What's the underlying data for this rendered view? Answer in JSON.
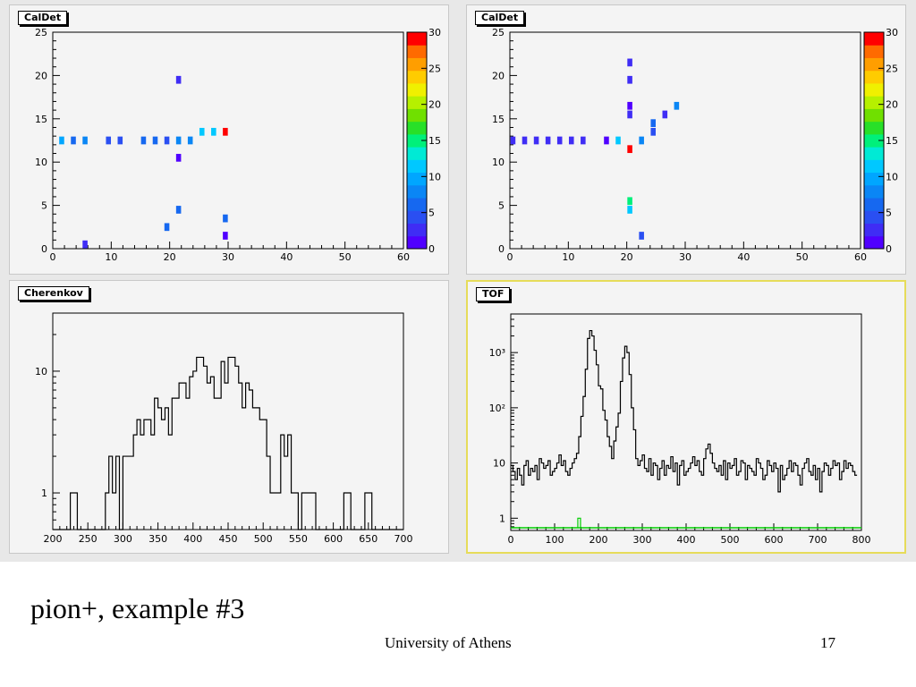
{
  "slide": {
    "caption": "pion+, example #3",
    "footer": "University of Athens",
    "page_number": "17"
  },
  "chart_data": [
    {
      "type": "heatmap",
      "title": "CalDet",
      "xlim": [
        0,
        60
      ],
      "ylim": [
        0,
        25
      ],
      "xticks": [
        0,
        10,
        20,
        30,
        40,
        50,
        60
      ],
      "yticks": [
        0,
        5,
        10,
        15,
        20,
        25
      ],
      "zlim": [
        0,
        30
      ],
      "zticks": [
        0,
        5,
        10,
        15,
        20,
        25,
        30
      ],
      "palette": [
        "#5000ff",
        "#3f2df5",
        "#2a4ff2",
        "#1668f0",
        "#0a86f5",
        "#00a6ff",
        "#00c8ff",
        "#00ead5",
        "#00f07a",
        "#28e028",
        "#70e000",
        "#b6f000",
        "#f0f000",
        "#ffcc00",
        "#ff9e00",
        "#ff6a00",
        "#ff0000"
      ],
      "points": [
        {
          "x": 1,
          "y": 12.5,
          "z": 9
        },
        {
          "x": 3,
          "y": 12.5,
          "z": 7
        },
        {
          "x": 5,
          "y": 12.5,
          "z": 8
        },
        {
          "x": 9,
          "y": 12.5,
          "z": 4
        },
        {
          "x": 11,
          "y": 12.5,
          "z": 4
        },
        {
          "x": 15,
          "y": 12.5,
          "z": 6
        },
        {
          "x": 17,
          "y": 12.5,
          "z": 6
        },
        {
          "x": 19,
          "y": 12.5,
          "z": 4
        },
        {
          "x": 21,
          "y": 12.5,
          "z": 8
        },
        {
          "x": 23,
          "y": 12.5,
          "z": 8
        },
        {
          "x": 25,
          "y": 13.5,
          "z": 12
        },
        {
          "x": 27,
          "y": 13.5,
          "z": 12
        },
        {
          "x": 29,
          "y": 13.5,
          "z": 30
        },
        {
          "x": 21,
          "y": 19.5,
          "z": 3
        },
        {
          "x": 21,
          "y": 10.5,
          "z": 1
        },
        {
          "x": 21,
          "y": 4.5,
          "z": 7
        },
        {
          "x": 19,
          "y": 2.5,
          "z": 7
        },
        {
          "x": 29,
          "y": 3.5,
          "z": 7
        },
        {
          "x": 29,
          "y": 1.5,
          "z": 1
        },
        {
          "x": 5,
          "y": 0.5,
          "z": 3
        }
      ]
    },
    {
      "type": "heatmap",
      "title": "CalDet",
      "xlim": [
        0,
        60
      ],
      "ylim": [
        0,
        25
      ],
      "xticks": [
        0,
        10,
        20,
        30,
        40,
        50,
        60
      ],
      "yticks": [
        0,
        5,
        10,
        15,
        20,
        25
      ],
      "zlim": [
        0,
        30
      ],
      "zticks": [
        0,
        5,
        10,
        15,
        20,
        25,
        30
      ],
      "points": [
        {
          "x": 0.5,
          "y": 12.5,
          "z": 2
        },
        {
          "x": 2.5,
          "y": 12.5,
          "z": 2
        },
        {
          "x": 4.5,
          "y": 12.5,
          "z": 2
        },
        {
          "x": 6.5,
          "y": 12.5,
          "z": 2
        },
        {
          "x": 8.5,
          "y": 12.5,
          "z": 2
        },
        {
          "x": 10.5,
          "y": 12.5,
          "z": 2
        },
        {
          "x": 12.5,
          "y": 12.5,
          "z": 2
        },
        {
          "x": 16.5,
          "y": 12.5,
          "z": 1
        },
        {
          "x": 18.5,
          "y": 12.5,
          "z": 11
        },
        {
          "x": 20.5,
          "y": 11.5,
          "z": 30
        },
        {
          "x": 22.5,
          "y": 12.5,
          "z": 8
        },
        {
          "x": 20.5,
          "y": 21.5,
          "z": 2
        },
        {
          "x": 20.5,
          "y": 19.5,
          "z": 2
        },
        {
          "x": 20.5,
          "y": 16.5,
          "z": 1
        },
        {
          "x": 20.5,
          "y": 15.5,
          "z": 2
        },
        {
          "x": 24.5,
          "y": 13.5,
          "z": 4
        },
        {
          "x": 24.5,
          "y": 14.5,
          "z": 6
        },
        {
          "x": 26.5,
          "y": 15.5,
          "z": 2
        },
        {
          "x": 28.5,
          "y": 16.5,
          "z": 8
        },
        {
          "x": 20.5,
          "y": 5.5,
          "z": 15
        },
        {
          "x": 20.5,
          "y": 4.5,
          "z": 11
        },
        {
          "x": 22.5,
          "y": 1.5,
          "z": 5
        }
      ]
    },
    {
      "type": "histogram",
      "title": "Cherenkov",
      "xlim": [
        200,
        700
      ],
      "xticks": [
        200,
        250,
        300,
        350,
        400,
        450,
        500,
        550,
        600,
        650,
        700
      ],
      "yscale": "log",
      "ylim": [
        0.5,
        30
      ],
      "yticks": [
        1,
        10
      ],
      "bin_width": 5,
      "x_start": 200,
      "values": [
        0,
        0,
        0,
        0,
        0,
        1,
        1,
        0,
        0,
        0,
        0,
        0,
        0,
        0,
        0,
        1,
        2,
        1,
        2,
        0,
        2,
        2,
        2,
        3,
        4,
        3,
        4,
        4,
        3,
        6,
        5,
        4,
        5,
        3,
        6,
        6,
        8,
        8,
        6,
        9,
        10,
        13,
        13,
        11,
        8,
        9,
        6,
        6,
        12,
        8,
        13,
        13,
        11,
        8,
        5,
        8,
        7,
        5,
        5,
        4,
        4,
        2,
        1,
        1,
        1,
        3,
        2,
        3,
        1,
        1,
        0,
        1,
        1,
        1,
        1,
        0,
        0,
        0,
        0,
        0,
        0,
        0,
        0,
        1,
        1,
        0,
        0,
        0,
        0,
        1,
        1,
        0,
        0,
        0,
        0,
        0,
        0,
        0,
        0,
        0
      ]
    },
    {
      "type": "histogram",
      "title": "TOF",
      "xlim": [
        0,
        800
      ],
      "xticks": [
        0,
        100,
        200,
        300,
        400,
        500,
        600,
        700,
        800
      ],
      "yscale": "log",
      "ylim": [
        0.6,
        5000
      ],
      "yticks": [
        1,
        10,
        100,
        1000
      ],
      "ytick_labels": [
        "1",
        "10",
        "10²",
        "10³"
      ],
      "bin_width": 5,
      "x_start": 0,
      "values": [
        9,
        7,
        5,
        8,
        6,
        4,
        9,
        11,
        6,
        8,
        7,
        9,
        5,
        12,
        10,
        8,
        9,
        11,
        6,
        7,
        8,
        10,
        14,
        9,
        11,
        7,
        6,
        8,
        10,
        12,
        15,
        30,
        70,
        160,
        500,
        1800,
        2500,
        2000,
        1100,
        600,
        250,
        220,
        90,
        60,
        30,
        20,
        12,
        25,
        45,
        80,
        300,
        800,
        1300,
        1000,
        400,
        100,
        40,
        12,
        9,
        11,
        14,
        8,
        7,
        12,
        6,
        10,
        9,
        5,
        8,
        11,
        6,
        9,
        8,
        13,
        7,
        10,
        4,
        9,
        11,
        6,
        7,
        8,
        10,
        13,
        9,
        11,
        7,
        6,
        12,
        18,
        22,
        15,
        10,
        8,
        7,
        9,
        6,
        11,
        5,
        10,
        8,
        9,
        12,
        6,
        7,
        11,
        10,
        5,
        9,
        8,
        7,
        6,
        12,
        10,
        8,
        5,
        6,
        11,
        9,
        7,
        10,
        8,
        3,
        9,
        5,
        6,
        8,
        11,
        7,
        10,
        9,
        6,
        4,
        8,
        10,
        12,
        7,
        6,
        9,
        5,
        8,
        3,
        7,
        10,
        9,
        6,
        8,
        11,
        9,
        10,
        5,
        7,
        11,
        8,
        10,
        9,
        7,
        6
      ],
      "overlay": {
        "color": "#00cc00",
        "x": 155,
        "value": 1
      }
    }
  ]
}
